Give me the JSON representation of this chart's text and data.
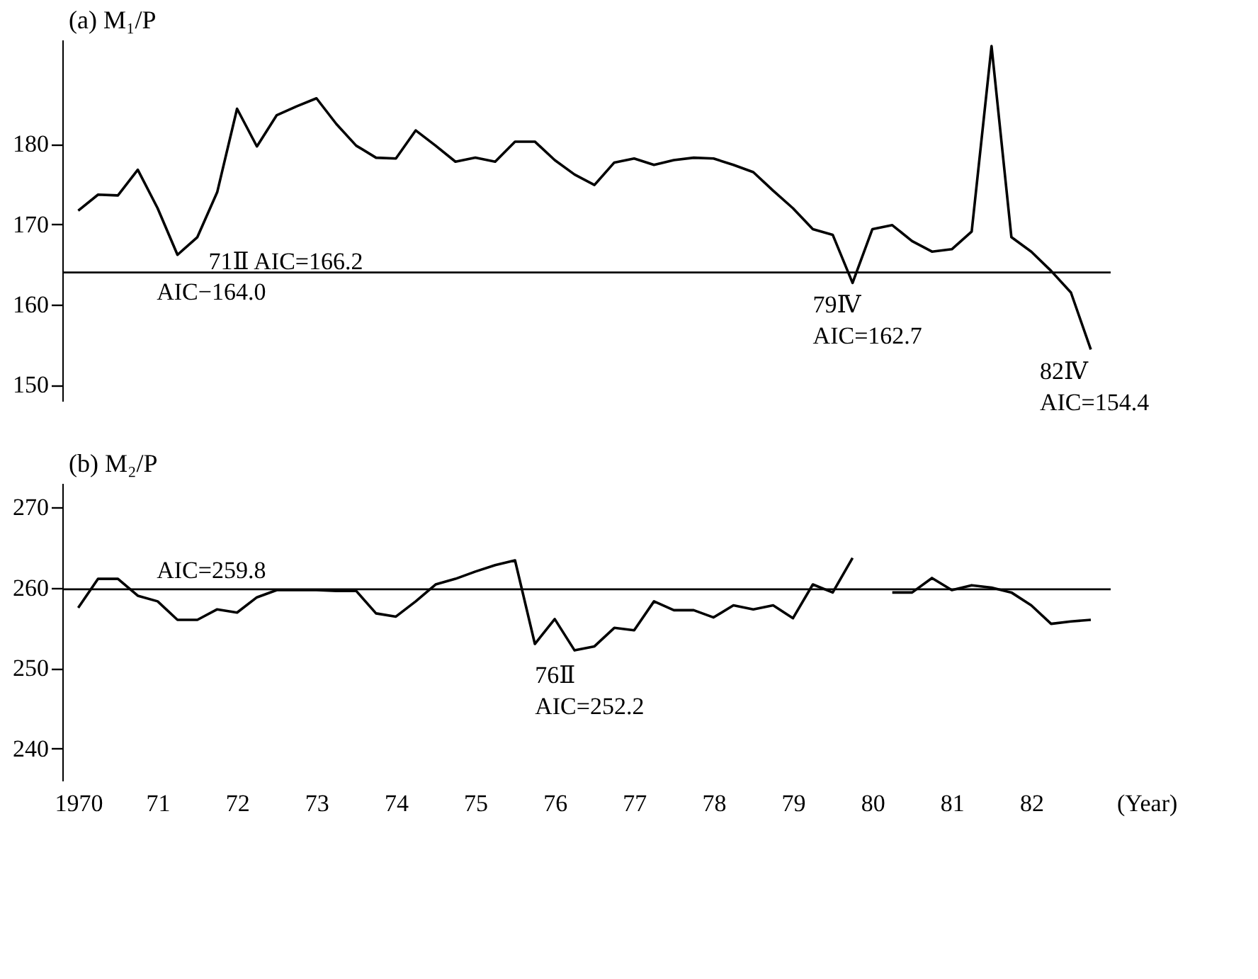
{
  "chart_data": [
    {
      "type": "line",
      "title": "(a) M₁/P",
      "tick_labels": "y",
      "x": [
        1970,
        1970.25,
        1970.5,
        1970.75,
        1971,
        1971.25,
        1971.5,
        1971.75,
        1972,
        1972.25,
        1972.5,
        1972.75,
        1973,
        1973.25,
        1973.5,
        1973.75,
        1974,
        1974.25,
        1974.5,
        1974.75,
        1975,
        1975.25,
        1975.5,
        1975.75,
        1976,
        1976.25,
        1976.5,
        1976.75,
        1977,
        1977.25,
        1977.5,
        1977.75,
        1978,
        1978.25,
        1978.5,
        1978.75,
        1979,
        1979.25,
        1979.5,
        1979.75,
        1980,
        1980.25,
        1980.5,
        1980.75,
        1981,
        1981.25,
        1981.5,
        1981.75,
        1982,
        1982.25,
        1982.5,
        1982.75
      ],
      "series": [
        {
          "color": "#000000",
          "values": [
            171.7,
            173.7,
            173.6,
            176.8,
            172.0,
            166.2,
            168.4,
            174.0,
            184.4,
            179.7,
            183.6,
            184.7,
            185.7,
            182.5,
            179.8,
            178.3,
            178.2,
            181.7,
            179.8,
            177.8,
            178.3,
            177.8,
            180.3,
            180.3,
            178.0,
            176.2,
            174.9,
            177.7,
            178.2,
            177.4,
            178.0,
            178.3,
            178.2,
            177.4,
            176.5,
            174.2,
            172.0,
            169.4,
            168.7,
            162.7,
            169.4,
            169.9,
            167.9,
            166.6,
            166.9,
            169.1,
            192.2,
            168.4,
            166.6,
            164.2,
            161.5,
            154.4
          ]
        }
      ],
      "xlim": [
        1969.8,
        1983.0
      ],
      "ylim": [
        148,
        193
      ],
      "yticks": [
        150,
        160,
        170,
        180
      ],
      "ref_lines": [
        {
          "axis": "y",
          "value": 164.0,
          "label": "AIC−164.0",
          "color": "#000000"
        }
      ],
      "annotations": [
        {
          "text": "71Ⅱ  AIC=166.2",
          "x": 1971.25,
          "y": 166.2
        },
        {
          "text": "79Ⅳ\nAIC=162.7",
          "x": 1979.75,
          "y": 162.7
        },
        {
          "text": "82Ⅳ\nAIC=154.4",
          "x": 1982.75,
          "y": 154.4
        }
      ],
      "grid": false,
      "marker": "none",
      "line_style": "solid"
    },
    {
      "type": "line",
      "title": "(b) M₂/P",
      "xlabel": "(Year)",
      "x": [
        1970,
        1970.25,
        1970.5,
        1970.75,
        1971,
        1971.25,
        1971.5,
        1971.75,
        1972,
        1972.25,
        1972.5,
        1972.75,
        1973,
        1973.25,
        1973.5,
        1973.75,
        1974,
        1974.25,
        1974.5,
        1974.75,
        1975,
        1975.25,
        1975.5,
        1975.75,
        1976,
        1976.25,
        1976.5,
        1976.75,
        1977,
        1977.25,
        1977.5,
        1977.75,
        1978,
        1978.25,
        1978.5,
        1978.75,
        1979,
        1979.25,
        1979.5,
        1979.75,
        1980,
        1980.25,
        1980.5,
        1980.75,
        1981,
        1981.25,
        1981.5,
        1981.75,
        1982,
        1982.25,
        1982.5,
        1982.75
      ],
      "series": [
        {
          "color": "#000000",
          "values": [
            257.5,
            261.1,
            261.1,
            259.0,
            258.3,
            256.0,
            256.0,
            257.3,
            256.9,
            258.8,
            259.7,
            259.7,
            259.7,
            259.6,
            259.6,
            256.8,
            256.4,
            258.3,
            260.4,
            261.1,
            262.0,
            262.8,
            263.4,
            253.0,
            256.1,
            252.2,
            252.7,
            255.0,
            254.7,
            258.3,
            257.2,
            257.2,
            256.3,
            257.8,
            257.3,
            257.8,
            256.2,
            260.4,
            259.4,
            263.7,
            null,
            259.4,
            259.4,
            261.2,
            259.7,
            260.3,
            260.0,
            259.4,
            257.8,
            255.5,
            255.8,
            256.0
          ]
        }
      ],
      "xlim": [
        1969.8,
        1983.0
      ],
      "xticks": [
        1970,
        {
          "value": 1971,
          "label": "71"
        },
        {
          "value": 1972,
          "label": "72"
        },
        {
          "value": 1973,
          "label": "73"
        },
        {
          "value": 1974,
          "label": "74"
        },
        {
          "value": 1975,
          "label": "75"
        },
        {
          "value": 1976,
          "label": "76"
        },
        {
          "value": 1977,
          "label": "77"
        },
        {
          "value": 1978,
          "label": "78"
        },
        {
          "value": 1979,
          "label": "79"
        },
        {
          "value": 1980,
          "label": "80"
        },
        {
          "value": 1981,
          "label": "81"
        },
        {
          "value": 1982,
          "label": "82"
        }
      ],
      "ylim": [
        236,
        273
      ],
      "yticks": [
        240,
        250,
        260,
        270
      ],
      "ref_lines": [
        {
          "axis": "y",
          "value": 259.8,
          "label": "AIC=259.8",
          "color": "#000000"
        }
      ],
      "annotations": [
        {
          "text": "76Ⅱ\nAIC=252.2",
          "x": 1976.25,
          "y": 252.2
        }
      ],
      "grid": false,
      "marker": "none",
      "line_style": "solid"
    }
  ]
}
